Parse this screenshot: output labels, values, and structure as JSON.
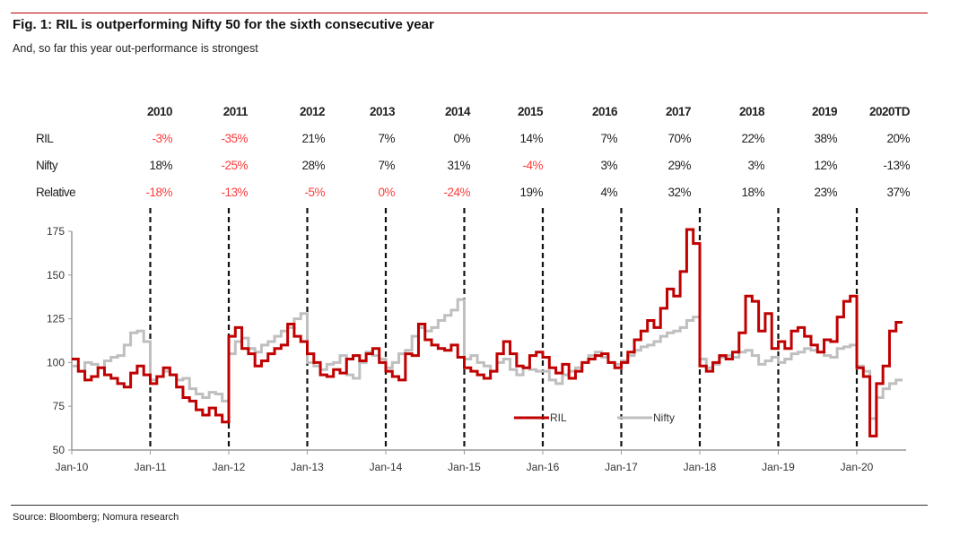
{
  "title": "Fig. 1: RIL is outperforming Nifty 50 for the sixth consecutive year",
  "subtitle": "And, so far this year out-performance is strongest",
  "source": "Source: Bloomberg; Nomura research",
  "colors": {
    "ril": "#c00000",
    "nifty": "#bfbfbf",
    "negative": "#ff3b3b"
  },
  "table": {
    "headers": [
      "2010",
      "2011",
      "2012",
      "2013",
      "2014",
      "2015",
      "2016",
      "2017",
      "2018",
      "2019",
      "2020TD"
    ],
    "rows": [
      {
        "label": "RIL",
        "values": [
          "-3%",
          "-35%",
          "21%",
          "7%",
          "0%",
          "14%",
          "7%",
          "70%",
          "22%",
          "38%",
          "20%"
        ],
        "red": [
          true,
          true,
          false,
          false,
          false,
          false,
          false,
          false,
          false,
          false,
          false
        ]
      },
      {
        "label": "Nifty",
        "values": [
          "18%",
          "-25%",
          "28%",
          "7%",
          "31%",
          "-4%",
          "3%",
          "29%",
          "3%",
          "12%",
          "-13%"
        ],
        "red": [
          false,
          true,
          false,
          false,
          false,
          true,
          false,
          false,
          false,
          false,
          false
        ]
      },
      {
        "label": "Relative",
        "values": [
          "-18%",
          "-13%",
          "-5%",
          "0%",
          "-24%",
          "19%",
          "4%",
          "32%",
          "18%",
          "23%",
          "37%"
        ],
        "red": [
          true,
          true,
          true,
          true,
          true,
          false,
          false,
          false,
          false,
          false,
          false
        ]
      }
    ]
  },
  "chart_data": {
    "type": "line",
    "title": "",
    "xlabel": "",
    "ylabel": "",
    "ylim": [
      50,
      175
    ],
    "yticks": [
      "50",
      "75",
      "100",
      "125",
      "150",
      "175"
    ],
    "xticks": [
      "Jan-10",
      "Jan-11",
      "Jan-12",
      "Jan-13",
      "Jan-14",
      "Jan-15",
      "Jan-16",
      "Jan-17",
      "Jan-18",
      "Jan-19",
      "Jan-20"
    ],
    "x_unit": "monthly from Jan-2010; each calendar year rebased to 100",
    "year_dividers": [
      "Jan-11",
      "Jan-12",
      "Jan-13",
      "Jan-14",
      "Jan-15",
      "Jan-16",
      "Jan-17",
      "Jan-18",
      "Jan-19",
      "Jan-20"
    ],
    "legend": {
      "position": "bottom-center",
      "entries": [
        "RIL",
        "Nifty"
      ]
    },
    "series": [
      {
        "name": "RIL",
        "values": [
          102,
          95,
          90,
          92,
          97,
          93,
          91,
          88,
          86,
          94,
          98,
          93,
          88,
          92,
          97,
          93,
          86,
          80,
          78,
          73,
          70,
          74,
          70,
          66,
          115,
          120,
          108,
          105,
          98,
          101,
          105,
          108,
          110,
          122,
          115,
          112,
          105,
          100,
          93,
          92,
          96,
          94,
          102,
          104,
          101,
          105,
          108,
          100,
          95,
          92,
          90,
          105,
          104,
          122,
          113,
          110,
          108,
          107,
          110,
          103,
          97,
          95,
          93,
          91,
          95,
          105,
          112,
          105,
          98,
          97,
          104,
          106,
          103,
          97,
          94,
          99,
          91,
          95,
          100,
          102,
          104,
          105,
          100,
          97,
          100,
          106,
          113,
          118,
          124,
          120,
          131,
          142,
          138,
          152,
          176,
          168,
          98,
          95,
          100,
          104,
          102,
          106,
          117,
          138,
          135,
          118,
          128,
          108,
          112,
          108,
          118,
          120,
          115,
          110,
          106,
          113,
          112,
          126,
          135,
          138,
          97,
          92,
          58,
          88,
          98,
          118,
          123
        ]
      },
      {
        "name": "Nifty",
        "values": [
          98,
          95,
          100,
          99,
          97,
          101,
          103,
          104,
          110,
          117,
          118,
          112,
          90,
          92,
          95,
          93,
          90,
          91,
          85,
          82,
          80,
          83,
          82,
          78,
          105,
          112,
          114,
          108,
          106,
          110,
          112,
          115,
          118,
          120,
          125,
          128,
          100,
          98,
          96,
          99,
          100,
          104,
          93,
          91,
          100,
          106,
          104,
          102,
          97,
          100,
          105,
          107,
          115,
          120,
          118,
          120,
          124,
          127,
          130,
          136,
          102,
          104,
          100,
          98,
          95,
          100,
          102,
          96,
          93,
          97,
          96,
          95,
          95,
          90,
          88,
          93,
          95,
          97,
          100,
          104,
          106,
          103,
          100,
          99,
          101,
          104,
          107,
          109,
          110,
          112,
          115,
          117,
          118,
          120,
          124,
          126,
          102,
          97,
          99,
          103,
          104,
          103,
          106,
          107,
          104,
          99,
          101,
          103,
          100,
          102,
          105,
          106,
          108,
          107,
          106,
          104,
          103,
          108,
          109,
          110,
          98,
          95,
          68,
          80,
          85,
          88,
          90
        ]
      }
    ]
  }
}
